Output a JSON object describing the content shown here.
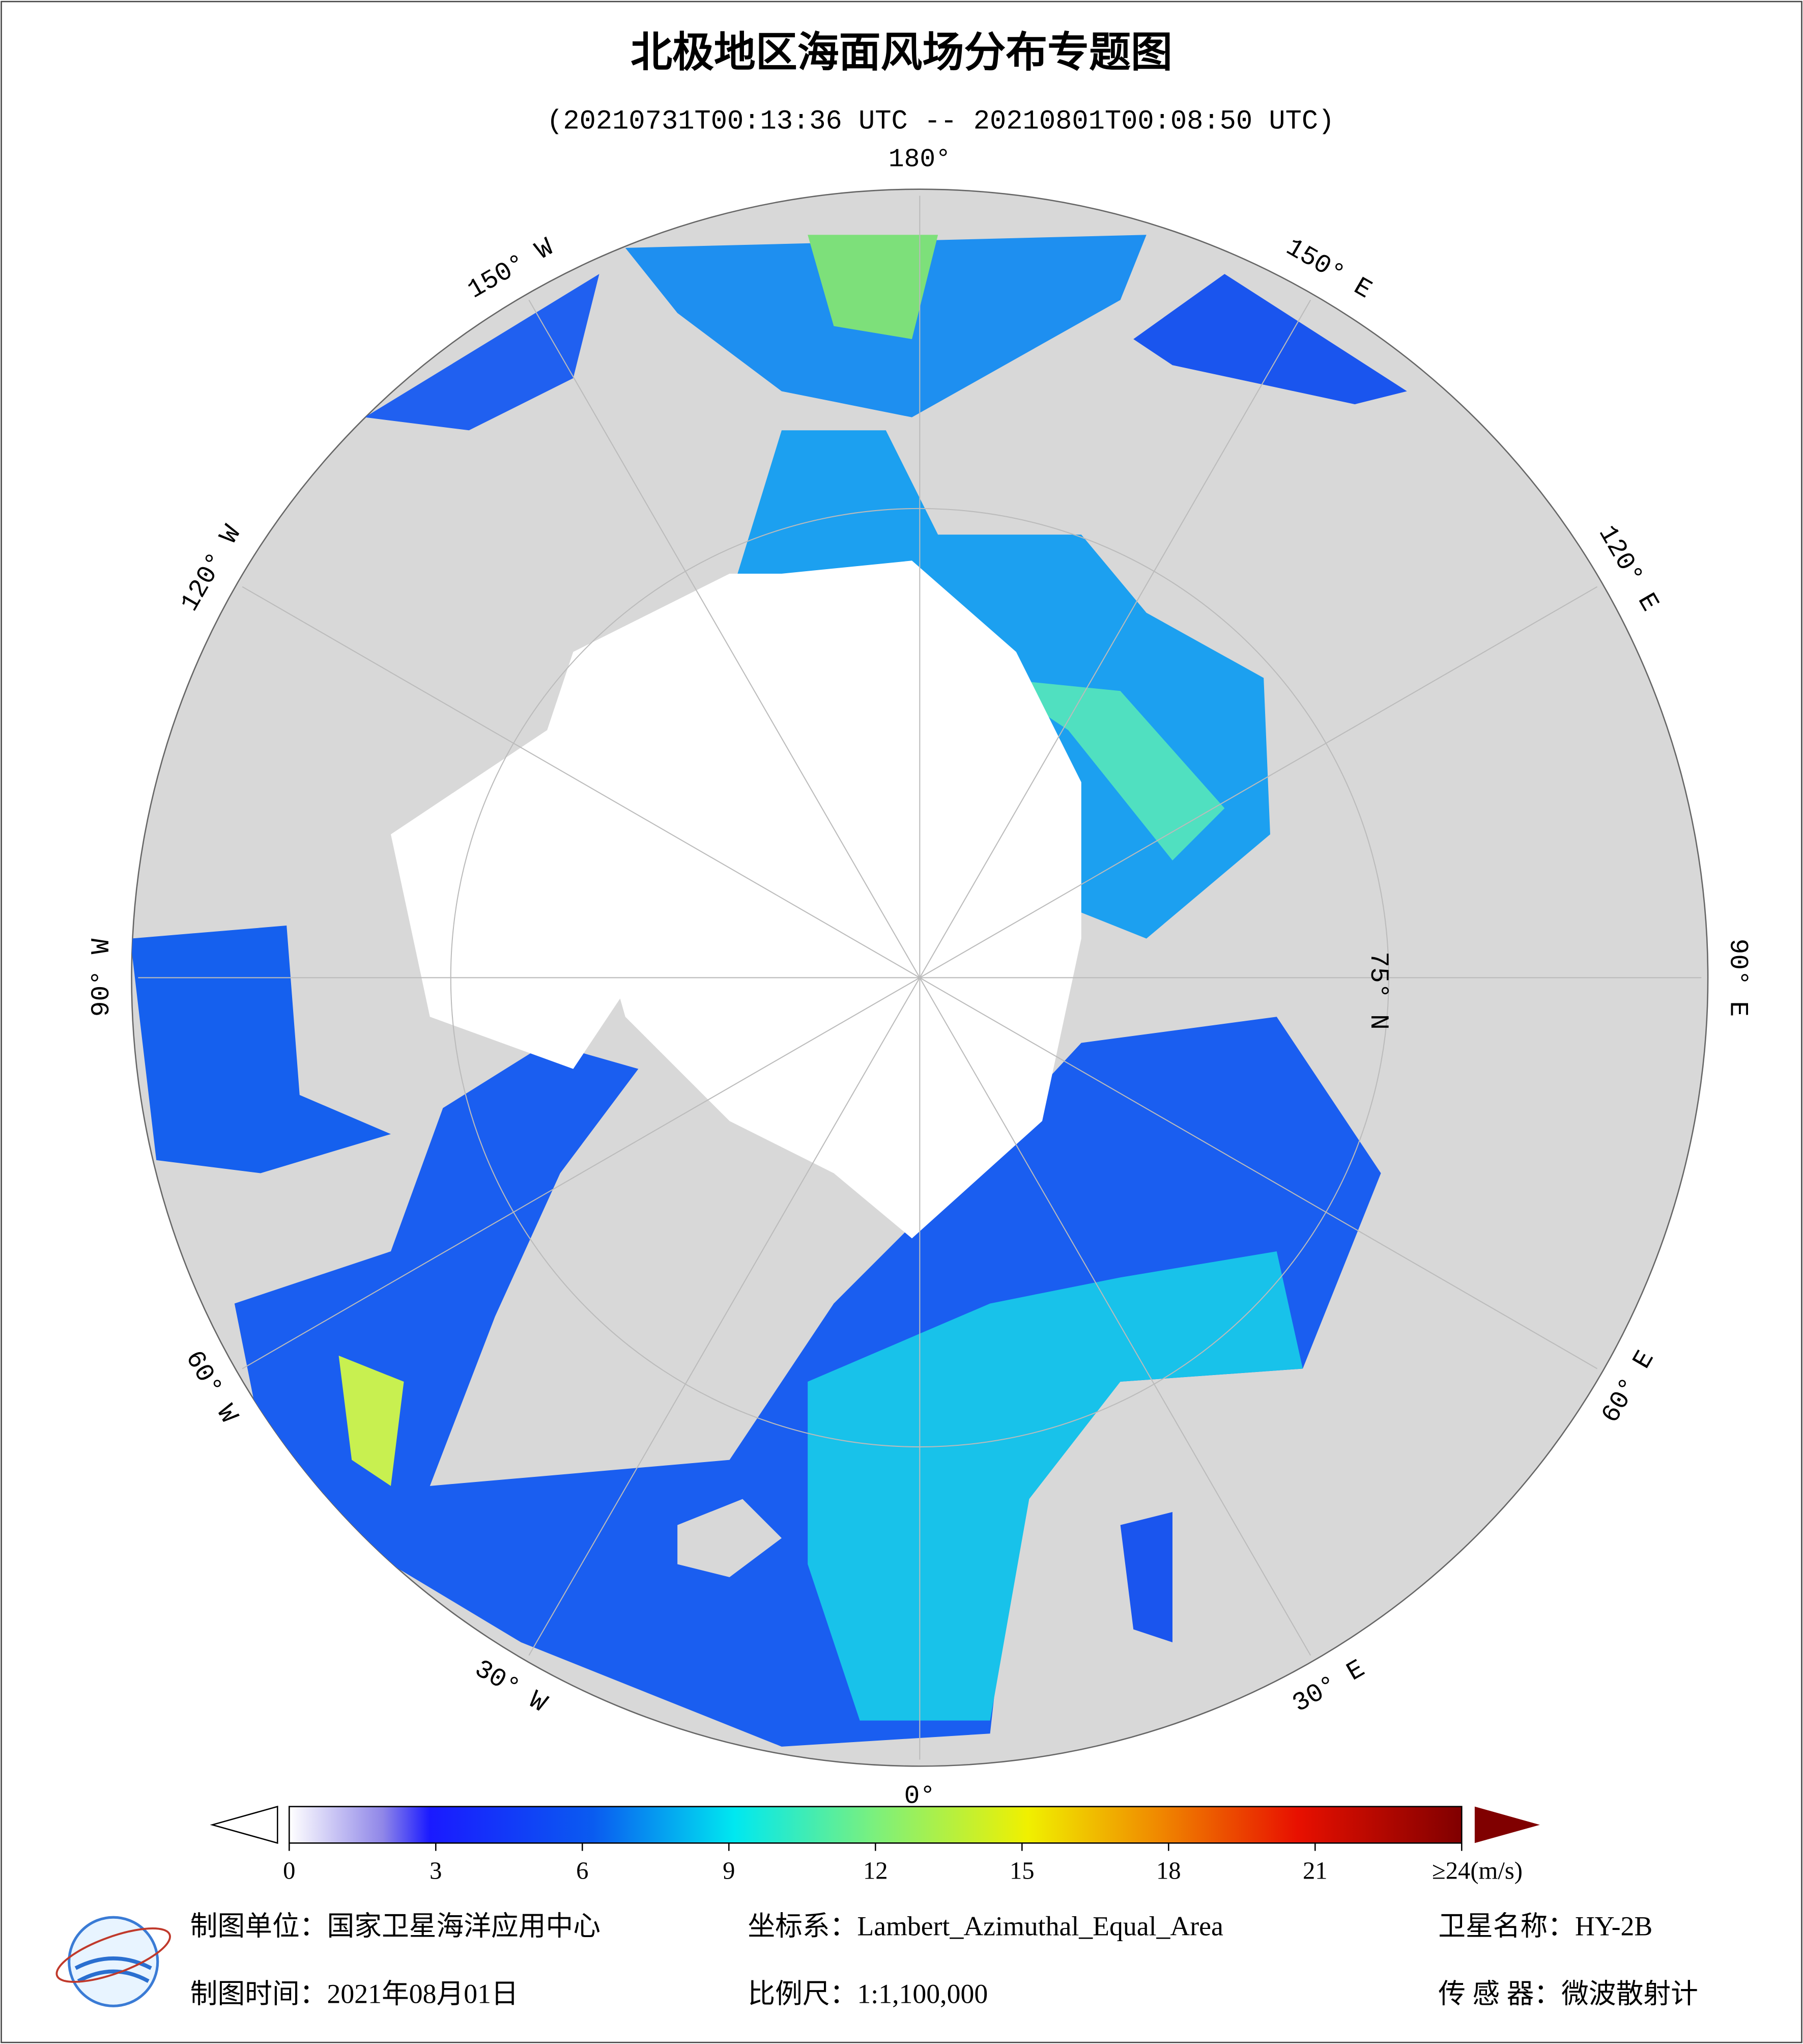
{
  "title": "北极地区海面风场分布专题图",
  "subtitle": "(20210731T00:13:36 UTC -- 20210801T00:08:50 UTC)",
  "map": {
    "lon_labels": [
      "0°",
      "30° E",
      "60° E",
      "90° E",
      "120° E",
      "150° E",
      "180°",
      "150° W",
      "120° W",
      "90° W",
      "60° W",
      "30° W"
    ],
    "lat_label": "75° N"
  },
  "colorbar": {
    "lim": [
      0,
      24
    ],
    "ticks": [
      0,
      3,
      6,
      9,
      12,
      15,
      18,
      21,
      {
        "value": 24,
        "label": "≥24(m/s)"
      }
    ]
  },
  "footer": {
    "unit": "制图单位：国家卫星海洋应用中心",
    "date": "制图时间：2021年08月01日",
    "crs": "坐标系：Lambert_Azimuthal_Equal_Area",
    "scale": "比例尺：1:1,100,000",
    "satellite": "卫星名称：HY-2B",
    "sensor": "传  感  器：微波散射计"
  }
}
